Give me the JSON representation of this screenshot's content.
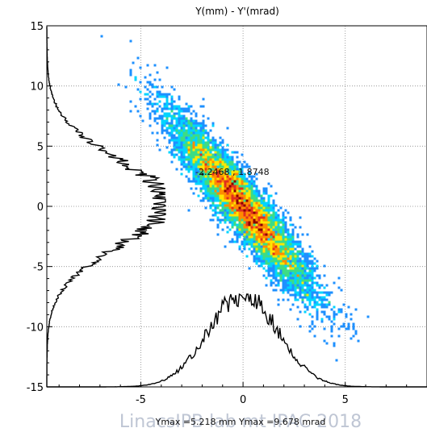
{
  "chart_data": {
    "type": "heatmap",
    "title": "Y(mm) - Y'(mrad)",
    "xlabel": "",
    "ylabel": "",
    "xlim": [
      -9.6,
      9.0
    ],
    "ylim": [
      -15,
      15
    ],
    "x_ticks": [
      -5,
      0,
      5
    ],
    "y_ticks": [
      15,
      10,
      5,
      0,
      -5,
      -10,
      -15
    ],
    "x_tick_labels": [
      "-5",
      "0",
      "5"
    ],
    "y_tick_labels": [
      "15",
      "10",
      "5",
      "0",
      "-5",
      "-10",
      "-15"
    ],
    "grid": true,
    "distribution": {
      "description": "tilted elliptical particle density (phase-space)",
      "center": [
        0.0,
        0.0
      ],
      "sigma_x": 1.7,
      "sigma_y": 3.6,
      "correlation": -0.93,
      "colormap": [
        "#1f2fd6",
        "#1e90ff",
        "#00d4ff",
        "#3ddc84",
        "#ffe600",
        "#ff8c00",
        "#e0301e",
        "#8b0000"
      ]
    },
    "profile_x": {
      "description": "projected distribution along x (bottom)",
      "base_y": -15,
      "peak_y": -7.3,
      "peak_x": 0.0
    },
    "profile_y": {
      "description": "projected distribution along y (left)",
      "base_x": -9.6,
      "peak_x": -3.8,
      "peak_y": 0.3
    },
    "annotations": [
      {
        "text": "-2.2468 ; 1.8748",
        "x": -1.9,
        "y": 2.8
      }
    ],
    "footer": "Ymax =5.218 mm  Ymax =9.678 mrad"
  },
  "watermark": "LinacsIPB lab mt   IPAC 2018"
}
